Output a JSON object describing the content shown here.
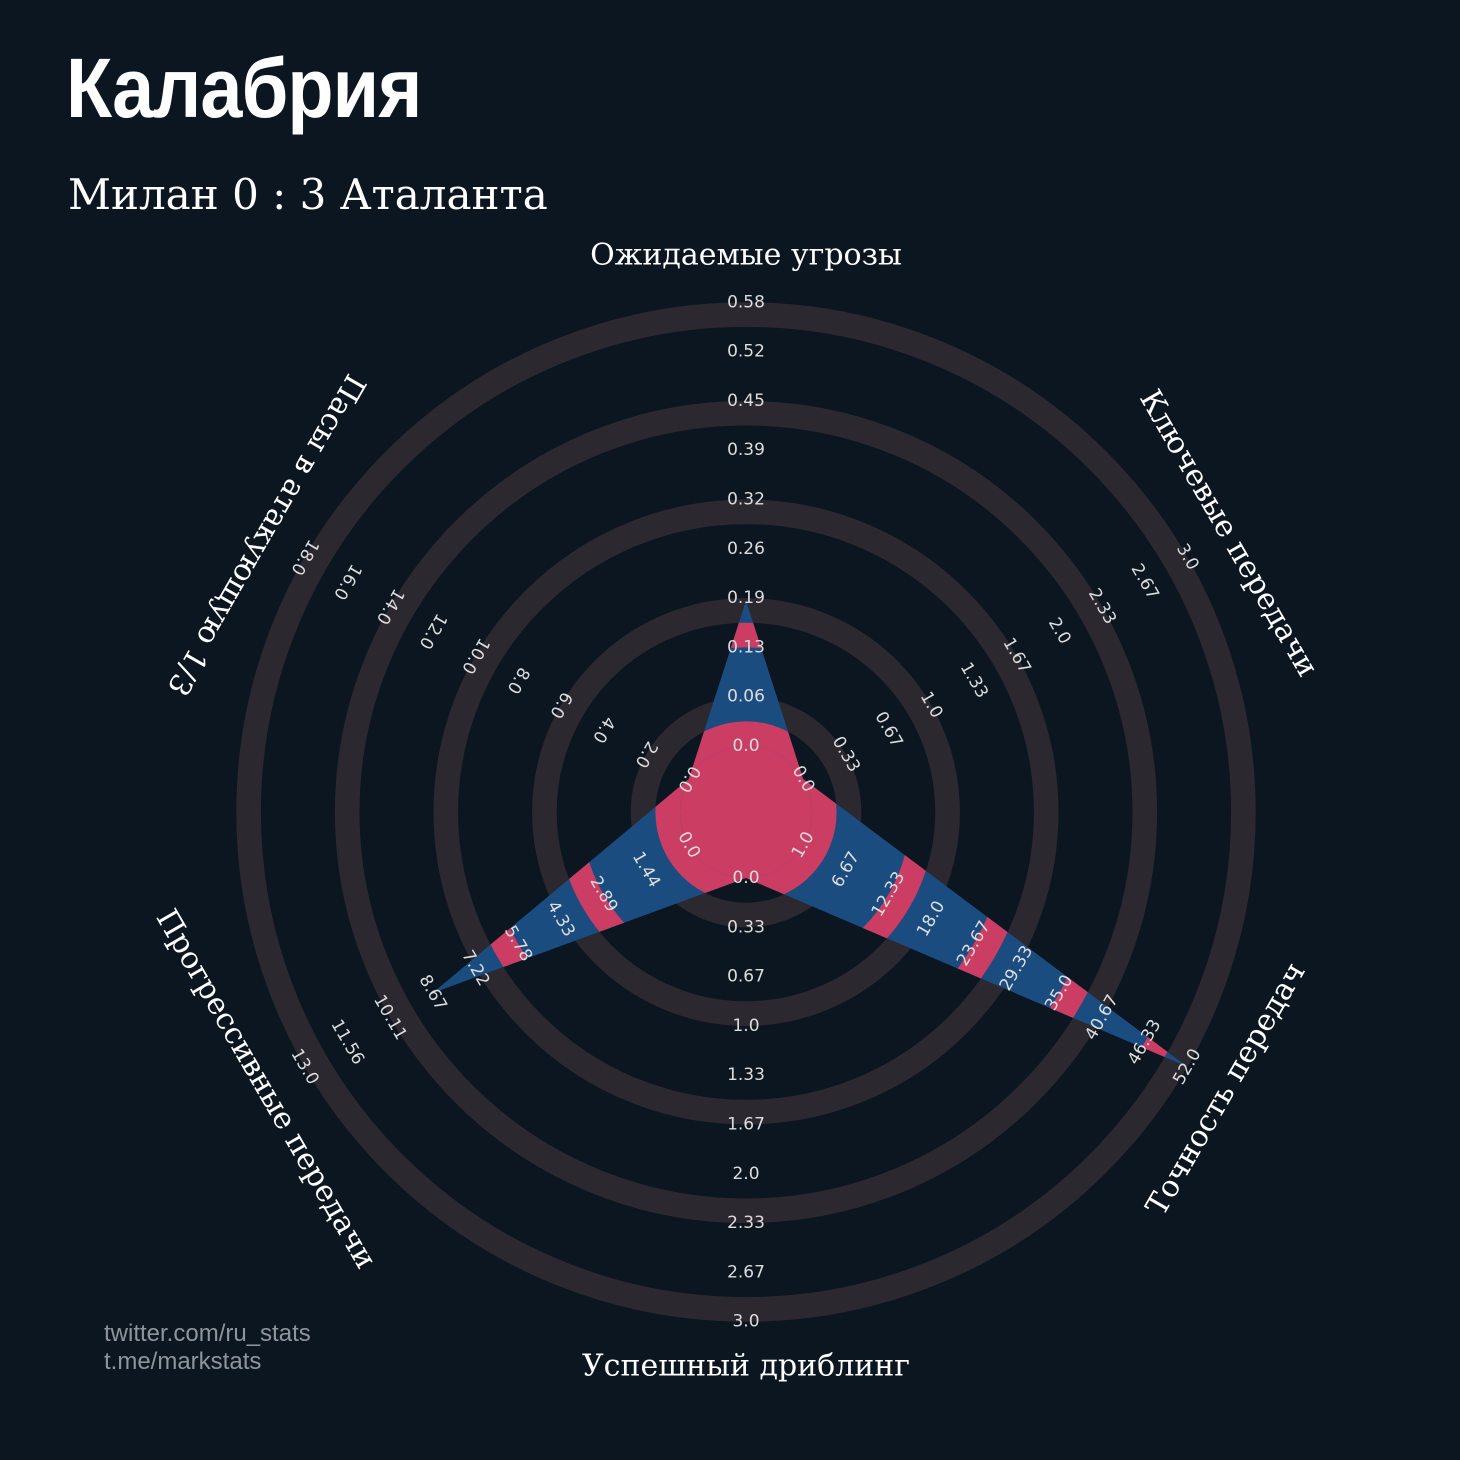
{
  "colors": {
    "background": "#0b1620",
    "ring": "#2c2830",
    "polygon_blue": "#1b4c80",
    "polygon_pink": "#cc3d64",
    "text": "#ffffff",
    "tick": "#dddddd",
    "credits": "#8e959c"
  },
  "chart_data": {
    "type": "radar",
    "title": "Калабрия",
    "subtitle": "Милан 0 : 3 Аталанта",
    "rings": 10,
    "axes": [
      {
        "label": "Ожидаемые угрозы",
        "ticks": [
          "0.0",
          "0.06",
          "0.13",
          "0.19",
          "0.26",
          "0.32",
          "0.39",
          "0.45",
          "0.52",
          "0.58"
        ],
        "min": 0.0,
        "max": 0.58,
        "value": 0.19
      },
      {
        "label": "Ключевые передачи",
        "ticks": [
          "0.0",
          "0.33",
          "0.67",
          "1.0",
          "1.33",
          "1.67",
          "2.0",
          "2.33",
          "2.67",
          "3.0"
        ],
        "min": 0.0,
        "max": 3.0,
        "value": 0.0
      },
      {
        "label": "Точность передач",
        "ticks": [
          "1.0",
          "6.67",
          "12.33",
          "18.0",
          "23.67",
          "29.33",
          "35.0",
          "40.67",
          "46.33",
          "52.0"
        ],
        "min": 1.0,
        "max": 52.0,
        "value": 52.0
      },
      {
        "label": "Успешный дриблинг",
        "ticks": [
          "0.0",
          "0.33",
          "0.67",
          "1.0",
          "1.33",
          "1.67",
          "2.0",
          "2.33",
          "2.67",
          "3.0"
        ],
        "min": 0.0,
        "max": 3.0,
        "value": 0.0
      },
      {
        "label": "Прогрессивные передачи",
        "ticks": [
          "0.0",
          "1.44",
          "2.89",
          "4.33",
          "5.78",
          "7.22",
          "8.67",
          "10.11",
          "11.56",
          "13.0"
        ],
        "min": 0.0,
        "max": 13.0,
        "value": 8.67
      },
      {
        "label": "Пасы в атакующую 1/3",
        "ticks": [
          "0.0",
          "2.0",
          "4.0",
          "6.0",
          "8.0",
          "10.0",
          "12.0",
          "14.0",
          "16.0",
          "18.0"
        ],
        "min": 0.0,
        "max": 18.0,
        "value": 0.0
      }
    ]
  },
  "credits": {
    "line1": "twitter.com/ru_stats",
    "line2": "t.me/markstats"
  }
}
